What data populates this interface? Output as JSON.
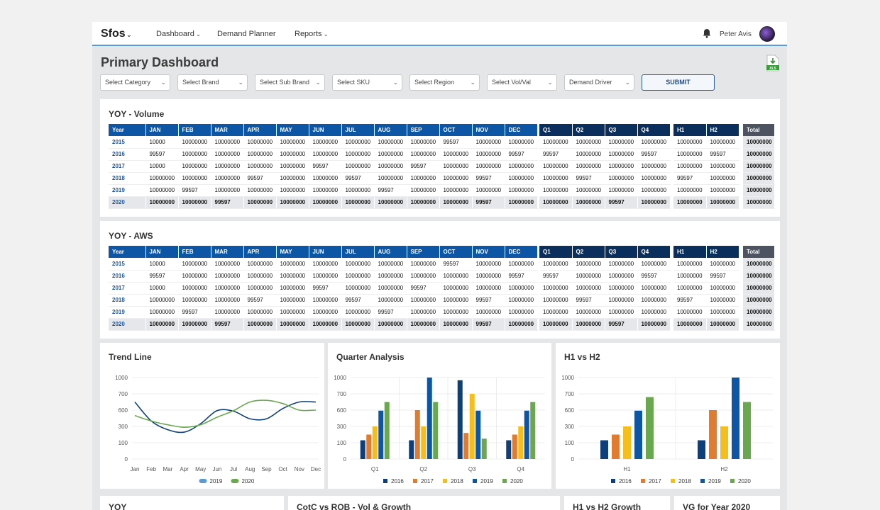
{
  "header": {
    "logo": "Sfos",
    "nav": [
      {
        "label": "Dashboard",
        "dropdown": true
      },
      {
        "label": "Demand Planner",
        "dropdown": false
      },
      {
        "label": "Reports",
        "dropdown": true
      }
    ],
    "user": "Peter Avis"
  },
  "page": {
    "title": "Primary Dashboard",
    "export_label": "XLS"
  },
  "filters": [
    "Select Category",
    "Select Brand",
    "Select Sub Brand",
    "Select SKU",
    "Select Region",
    "Select Vol/Val",
    "Demand Driver"
  ],
  "submit_label": "SUBMIT",
  "tables": [
    {
      "title": "YOY - Volume",
      "month_headers": [
        "Year",
        "JAN",
        "FEB",
        "MAR",
        "APR",
        "MAY",
        "JUN",
        "JUL",
        "AUG",
        "SEP",
        "OCT",
        "NOV",
        "DEC"
      ],
      "quarter_headers": [
        "Q1",
        "Q2",
        "Q3",
        "Q4"
      ],
      "half_headers": [
        "H1",
        "H2"
      ],
      "total_header": "Total",
      "rows": [
        {
          "year": "2015",
          "months": [
            "10000",
            "10000000",
            "10000000",
            "10000000",
            "10000000",
            "10000000",
            "10000000",
            "10000000",
            "10000000",
            "99597",
            "10000000",
            "10000000"
          ],
          "quarters": [
            "10000000",
            "10000000",
            "10000000",
            "10000000"
          ],
          "halves": [
            "10000000",
            "10000000"
          ],
          "total": "10000000"
        },
        {
          "year": "2016",
          "months": [
            "99597",
            "10000000",
            "10000000",
            "10000000",
            "10000000",
            "10000000",
            "10000000",
            "10000000",
            "10000000",
            "10000000",
            "10000000",
            "99597"
          ],
          "quarters": [
            "99597",
            "10000000",
            "10000000",
            "99597"
          ],
          "halves": [
            "10000000",
            "99597"
          ],
          "total": "10000000"
        },
        {
          "year": "2017",
          "months": [
            "10000",
            "10000000",
            "10000000",
            "10000000",
            "10000000",
            "99597",
            "10000000",
            "10000000",
            "99597",
            "10000000",
            "10000000",
            "10000000"
          ],
          "quarters": [
            "10000000",
            "10000000",
            "10000000",
            "10000000"
          ],
          "halves": [
            "10000000",
            "10000000"
          ],
          "total": "10000000"
        },
        {
          "year": "2018",
          "months": [
            "10000000",
            "10000000",
            "10000000",
            "99597",
            "10000000",
            "10000000",
            "99597",
            "10000000",
            "10000000",
            "10000000",
            "99597",
            "10000000"
          ],
          "quarters": [
            "10000000",
            "99597",
            "10000000",
            "10000000"
          ],
          "halves": [
            "99597",
            "10000000"
          ],
          "total": "10000000"
        },
        {
          "year": "2019",
          "months": [
            "10000000",
            "99597",
            "10000000",
            "10000000",
            "10000000",
            "10000000",
            "10000000",
            "99597",
            "10000000",
            "10000000",
            "10000000",
            "10000000"
          ],
          "quarters": [
            "10000000",
            "10000000",
            "10000000",
            "10000000"
          ],
          "halves": [
            "10000000",
            "10000000"
          ],
          "total": "10000000"
        },
        {
          "year": "2020",
          "months": [
            "10000000",
            "10000000",
            "99597",
            "10000000",
            "10000000",
            "10000000",
            "10000000",
            "10000000",
            "10000000",
            "10000000",
            "99597",
            "10000000"
          ],
          "quarters": [
            "10000000",
            "10000000",
            "99597",
            "10000000"
          ],
          "halves": [
            "10000000",
            "10000000"
          ],
          "total": "10000000"
        }
      ]
    },
    {
      "title": "YOY - AWS",
      "month_headers": [
        "Year",
        "JAN",
        "FEB",
        "MAR",
        "APR",
        "MAY",
        "JUN",
        "JUL",
        "AUG",
        "SEP",
        "OCT",
        "NOV",
        "DEC"
      ],
      "quarter_headers": [
        "Q1",
        "Q2",
        "Q3",
        "Q4"
      ],
      "half_headers": [
        "H1",
        "H2"
      ],
      "total_header": "Total",
      "rows": [
        {
          "year": "2015",
          "months": [
            "10000",
            "10000000",
            "10000000",
            "10000000",
            "10000000",
            "10000000",
            "10000000",
            "10000000",
            "10000000",
            "99597",
            "10000000",
            "10000000"
          ],
          "quarters": [
            "10000000",
            "10000000",
            "10000000",
            "10000000"
          ],
          "halves": [
            "10000000",
            "10000000"
          ],
          "total": "10000000"
        },
        {
          "year": "2016",
          "months": [
            "99597",
            "10000000",
            "10000000",
            "10000000",
            "10000000",
            "10000000",
            "10000000",
            "10000000",
            "10000000",
            "10000000",
            "10000000",
            "99597"
          ],
          "quarters": [
            "99597",
            "10000000",
            "10000000",
            "99597"
          ],
          "halves": [
            "10000000",
            "99597"
          ],
          "total": "10000000"
        },
        {
          "year": "2017",
          "months": [
            "10000",
            "10000000",
            "10000000",
            "10000000",
            "10000000",
            "99597",
            "10000000",
            "10000000",
            "99597",
            "10000000",
            "10000000",
            "10000000"
          ],
          "quarters": [
            "10000000",
            "10000000",
            "10000000",
            "10000000"
          ],
          "halves": [
            "10000000",
            "10000000"
          ],
          "total": "10000000"
        },
        {
          "year": "2018",
          "months": [
            "10000000",
            "10000000",
            "10000000",
            "99597",
            "10000000",
            "10000000",
            "99597",
            "10000000",
            "10000000",
            "10000000",
            "99597",
            "10000000"
          ],
          "quarters": [
            "10000000",
            "99597",
            "10000000",
            "10000000"
          ],
          "halves": [
            "99597",
            "10000000"
          ],
          "total": "10000000"
        },
        {
          "year": "2019",
          "months": [
            "10000000",
            "99597",
            "10000000",
            "10000000",
            "10000000",
            "10000000",
            "10000000",
            "99597",
            "10000000",
            "10000000",
            "10000000",
            "10000000"
          ],
          "quarters": [
            "10000000",
            "10000000",
            "10000000",
            "10000000"
          ],
          "halves": [
            "10000000",
            "10000000"
          ],
          "total": "10000000"
        },
        {
          "year": "2020",
          "months": [
            "10000000",
            "10000000",
            "99597",
            "10000000",
            "10000000",
            "10000000",
            "10000000",
            "10000000",
            "10000000",
            "10000000",
            "99597",
            "10000000"
          ],
          "quarters": [
            "10000000",
            "10000000",
            "99597",
            "10000000"
          ],
          "halves": [
            "10000000",
            "10000000"
          ],
          "total": "10000000"
        }
      ]
    }
  ],
  "chart_data": [
    {
      "type": "line",
      "title": "Trend Line",
      "categories": [
        "Jan",
        "Feb",
        "Mar",
        "Apr",
        "May",
        "Jun",
        "Jul",
        "Aug",
        "Sep",
        "Oct",
        "Nov",
        "Dec"
      ],
      "yticks": [
        "1000",
        "700",
        "600",
        "300",
        "100",
        "0"
      ],
      "series": [
        {
          "name": "2019",
          "color": "#0d3f7a",
          "values": [
            650,
            400,
            260,
            230,
            350,
            590,
            580,
            440,
            440,
            610,
            650,
            650
          ]
        },
        {
          "name": "2020",
          "color": "#6aa84f",
          "values": [
            500,
            400,
            330,
            290,
            330,
            470,
            590,
            650,
            660,
            640,
            600,
            600
          ]
        }
      ],
      "legend": "bottom",
      "legend_colors": [
        "#5a9bd5",
        "#6aa84f"
      ]
    },
    {
      "type": "bar",
      "title": "Quarter Analysis",
      "categories": [
        "Q1",
        "Q2",
        "Q3",
        "Q4"
      ],
      "yticks": [
        "1000",
        "700",
        "600",
        "300",
        "100",
        "0"
      ],
      "series": [
        {
          "name": "2016",
          "color": "#0d3f7a",
          "values": [
            130,
            130,
            950,
            130
          ]
        },
        {
          "name": "2017",
          "color": "#e07b2f",
          "values": [
            200,
            600,
            220,
            200
          ]
        },
        {
          "name": "2018",
          "color": "#f5be1a",
          "values": [
            300,
            300,
            700,
            300
          ]
        },
        {
          "name": "2019",
          "color": "#0d56a6",
          "values": [
            590,
            1000,
            590,
            590
          ]
        },
        {
          "name": "2020",
          "color": "#6aa84f",
          "values": [
            650,
            650,
            150,
            650
          ]
        }
      ],
      "legend": "bottom"
    },
    {
      "type": "bar",
      "title": "H1 vs H2",
      "categories": [
        "H1",
        "H2"
      ],
      "yticks": [
        "1000",
        "700",
        "600",
        "300",
        "100",
        "0"
      ],
      "series": [
        {
          "name": "2016",
          "color": "#0d3f7a",
          "values": [
            130,
            130
          ]
        },
        {
          "name": "2017",
          "color": "#e07b2f",
          "values": [
            200,
            600
          ]
        },
        {
          "name": "2018",
          "color": "#f5be1a",
          "values": [
            300,
            300
          ]
        },
        {
          "name": "2019",
          "color": "#0d56a6",
          "values": [
            590,
            1000
          ]
        },
        {
          "name": "2020",
          "color": "#6aa84f",
          "values": [
            680,
            650
          ]
        }
      ],
      "legend": "bottom"
    }
  ],
  "bottom_cards": [
    "YOY",
    "CotC vs ROB - Vol & Growth",
    "H1 vs H2 Growth",
    "VG for Year 2020"
  ]
}
